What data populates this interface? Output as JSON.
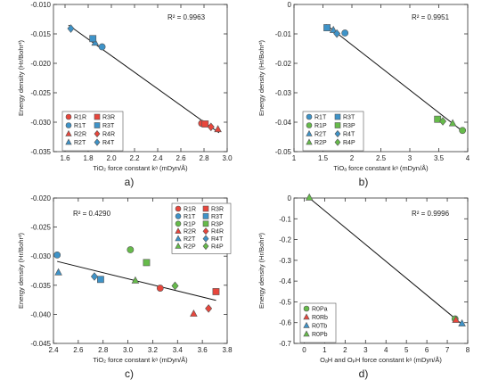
{
  "chart_data": [
    {
      "id": "a",
      "type": "scatter",
      "panel_label": "a)",
      "xlabel": "TiO₂ force constant kᵃ (mDyn/Å)",
      "ylabel": "Energy density (Hr/Bohr³)",
      "xlim": [
        1.5,
        3.0
      ],
      "ylim": [
        -0.035,
        -0.01
      ],
      "xticks": [
        1.6,
        1.8,
        2.0,
        2.2,
        2.4,
        2.6,
        2.8,
        3.0
      ],
      "xtick_labels": [
        "1.6",
        "1.8",
        "2.0",
        "2.2",
        "2.4",
        "2.6",
        "2.8",
        "3.0"
      ],
      "yticks": [
        -0.035,
        -0.03,
        -0.025,
        -0.02,
        -0.015,
        -0.01
      ],
      "ytick_labels": [
        "-0.035",
        "-0.030",
        "-0.025",
        "-0.020",
        "-0.015",
        "-0.010"
      ],
      "r2": "R² = 0.9963",
      "fit_line": [
        [
          1.63,
          -0.0135
        ],
        [
          2.93,
          -0.0318
        ]
      ],
      "legend_columns": 2,
      "series": [
        {
          "name": "R1R",
          "marker": "circle",
          "color": "#e8463c",
          "points": [
            [
              2.78,
              -0.0302
            ]
          ]
        },
        {
          "name": "R1T",
          "marker": "circle",
          "color": "#3e93c8",
          "points": [
            [
              1.92,
              -0.0172
            ]
          ]
        },
        {
          "name": "R2R",
          "marker": "triangle",
          "color": "#e8463c",
          "points": [
            [
              2.92,
              -0.0312
            ]
          ]
        },
        {
          "name": "R2T",
          "marker": "triangle",
          "color": "#3e93c8",
          "points": [
            [
              1.86,
              -0.0165
            ]
          ]
        },
        {
          "name": "R3R",
          "marker": "square",
          "color": "#e8463c",
          "points": [
            [
              2.81,
              -0.0303
            ]
          ]
        },
        {
          "name": "R3T",
          "marker": "square",
          "color": "#3e93c8",
          "points": [
            [
              1.84,
              -0.0158
            ]
          ]
        },
        {
          "name": "R4R",
          "marker": "diamond",
          "color": "#e8463c",
          "points": [
            [
              2.86,
              -0.0308
            ]
          ]
        },
        {
          "name": "R4T",
          "marker": "diamond",
          "color": "#3e93c8",
          "points": [
            [
              1.65,
              -0.0141
            ]
          ]
        }
      ]
    },
    {
      "id": "b",
      "type": "scatter",
      "panel_label": "b)",
      "xlabel": "TiOₐ force constant kᵃ (mDyn/Å)",
      "ylabel": "Energy density (Hr/Bohr³)",
      "xlim": [
        1.0,
        4.0
      ],
      "ylim": [
        -0.05,
        0
      ],
      "xticks": [
        1.0,
        1.5,
        2.0,
        2.5,
        3.0,
        3.5,
        4.0
      ],
      "xtick_labels": [
        "1",
        "1.5",
        "2",
        "2.5",
        "3",
        "3.5",
        "4"
      ],
      "yticks": [
        -0.05,
        -0.04,
        -0.03,
        -0.02,
        -0.01,
        0
      ],
      "ytick_labels": [
        "-0.05",
        "-0.04",
        "-0.03",
        "-0.02",
        "-0.01",
        "0"
      ],
      "r2": "R² = 0.9951",
      "fit_line": [
        [
          1.55,
          -0.0068
        ],
        [
          3.92,
          -0.0432
        ]
      ],
      "legend_columns": 2,
      "series": [
        {
          "name": "R1T",
          "marker": "circle",
          "color": "#3e93c8",
          "points": [
            [
              1.88,
              -0.0097
            ]
          ]
        },
        {
          "name": "R1P",
          "marker": "circle",
          "color": "#66bb4a",
          "points": [
            [
              3.91,
              -0.0428
            ]
          ]
        },
        {
          "name": "R2T",
          "marker": "triangle",
          "color": "#3e93c8",
          "points": [
            [
              1.68,
              -0.0087
            ]
          ]
        },
        {
          "name": "R2P",
          "marker": "triangle",
          "color": "#66bb4a",
          "points": [
            [
              3.74,
              -0.0404
            ]
          ]
        },
        {
          "name": "R3T",
          "marker": "square",
          "color": "#3e93c8",
          "points": [
            [
              1.57,
              -0.0079
            ]
          ]
        },
        {
          "name": "R3P",
          "marker": "square",
          "color": "#66bb4a",
          "points": [
            [
              3.48,
              -0.039
            ]
          ]
        },
        {
          "name": "R4T",
          "marker": "diamond",
          "color": "#3e93c8",
          "points": [
            [
              1.74,
              -0.0099
            ]
          ]
        },
        {
          "name": "R4P",
          "marker": "diamond",
          "color": "#66bb4a",
          "points": [
            [
              3.57,
              -0.0397
            ]
          ]
        }
      ]
    },
    {
      "id": "c",
      "type": "scatter",
      "panel_label": "c)",
      "xlabel": "TiO₂ force constant kᵃ (mDyn/Å)",
      "ylabel": "Energy density (Hr/Bohr³)",
      "xlim": [
        2.4,
        3.8
      ],
      "ylim": [
        -0.045,
        -0.02
      ],
      "xticks": [
        2.4,
        2.6,
        2.8,
        3.0,
        3.2,
        3.4,
        3.6,
        3.8
      ],
      "xtick_labels": [
        "2.4",
        "2.6",
        "2.8",
        "3.0",
        "3.2",
        "3.4",
        "3.6",
        "3.8"
      ],
      "yticks": [
        -0.045,
        -0.04,
        -0.035,
        -0.03,
        -0.025,
        -0.02
      ],
      "ytick_labels": [
        "-0.045",
        "-0.040",
        "-0.035",
        "-0.030",
        "-0.025",
        "-0.020"
      ],
      "r2": "R² = 0.4290",
      "fit_line": [
        [
          2.43,
          -0.0309
        ],
        [
          3.71,
          -0.0376
        ]
      ],
      "legend_columns": 2,
      "series": [
        {
          "name": "R1R",
          "marker": "circle",
          "color": "#e8463c",
          "points": [
            [
              3.26,
              -0.0355
            ]
          ]
        },
        {
          "name": "R1T",
          "marker": "circle",
          "color": "#3e93c8",
          "points": [
            [
              2.43,
              -0.0298
            ]
          ]
        },
        {
          "name": "R1P",
          "marker": "circle",
          "color": "#66bb4a",
          "points": [
            [
              3.02,
              -0.0289
            ]
          ]
        },
        {
          "name": "R2R",
          "marker": "triangle",
          "color": "#e8463c",
          "points": [
            [
              3.53,
              -0.0399
            ]
          ]
        },
        {
          "name": "R2T",
          "marker": "triangle",
          "color": "#3e93c8",
          "points": [
            [
              2.44,
              -0.0328
            ]
          ]
        },
        {
          "name": "R2P",
          "marker": "triangle",
          "color": "#66bb4a",
          "points": [
            [
              3.06,
              -0.0342
            ]
          ]
        },
        {
          "name": "R3R",
          "marker": "square",
          "color": "#e8463c",
          "points": [
            [
              3.71,
              -0.0361
            ]
          ]
        },
        {
          "name": "R3T",
          "marker": "square",
          "color": "#3e93c8",
          "points": [
            [
              2.78,
              -0.034
            ]
          ]
        },
        {
          "name": "R3P",
          "marker": "square",
          "color": "#66bb4a",
          "points": [
            [
              3.15,
              -0.0311
            ]
          ]
        },
        {
          "name": "R4R",
          "marker": "diamond",
          "color": "#e8463c",
          "points": [
            [
              3.65,
              -0.039
            ]
          ]
        },
        {
          "name": "R4T",
          "marker": "diamond",
          "color": "#3e93c8",
          "points": [
            [
              2.73,
              -0.0335
            ]
          ]
        },
        {
          "name": "R4P",
          "marker": "diamond",
          "color": "#66bb4a",
          "points": [
            [
              3.38,
              -0.0351
            ]
          ]
        }
      ]
    },
    {
      "id": "d",
      "type": "scatter",
      "panel_label": "d)",
      "xlabel": "OₐH and OₚH force constant kᵃ (mDyn/Å)",
      "ylabel": "Energy density (Hr/Bohr³)",
      "xlim": [
        -0.5,
        8.0
      ],
      "ylim": [
        -0.7,
        0
      ],
      "xticks": [
        0,
        1,
        2,
        3,
        4,
        5,
        6,
        7,
        8
      ],
      "xtick_labels": [
        "0",
        "1",
        "2",
        "3",
        "4",
        "5",
        "6",
        "7",
        "8"
      ],
      "yticks": [
        -0.7,
        -0.6,
        -0.5,
        -0.4,
        -0.3,
        -0.2,
        -0.1,
        0
      ],
      "ytick_labels": [
        "-0.7",
        "-0.6",
        "-0.5",
        "-0.4",
        "-0.3",
        "-0.2",
        "-0.1",
        "0"
      ],
      "r2": "R² = 0.9996",
      "fit_line": [
        [
          0.25,
          0.0
        ],
        [
          7.75,
          -0.61
        ]
      ],
      "legend_columns": 1,
      "series": [
        {
          "name": "R0Pa",
          "marker": "circle",
          "color": "#66bb4a",
          "points": [
            [
              7.38,
              -0.582
            ]
          ]
        },
        {
          "name": "R0Rb",
          "marker": "triangle",
          "color": "#e8463c",
          "points": [
            [
              7.42,
              -0.587
            ]
          ]
        },
        {
          "name": "R0Tb",
          "marker": "triangle",
          "color": "#3e93c8",
          "points": [
            [
              7.72,
              -0.604
            ]
          ]
        },
        {
          "name": "R0Pb",
          "marker": "triangle",
          "color": "#66bb4a",
          "points": [
            [
              0.25,
              0.002
            ]
          ]
        }
      ]
    }
  ]
}
